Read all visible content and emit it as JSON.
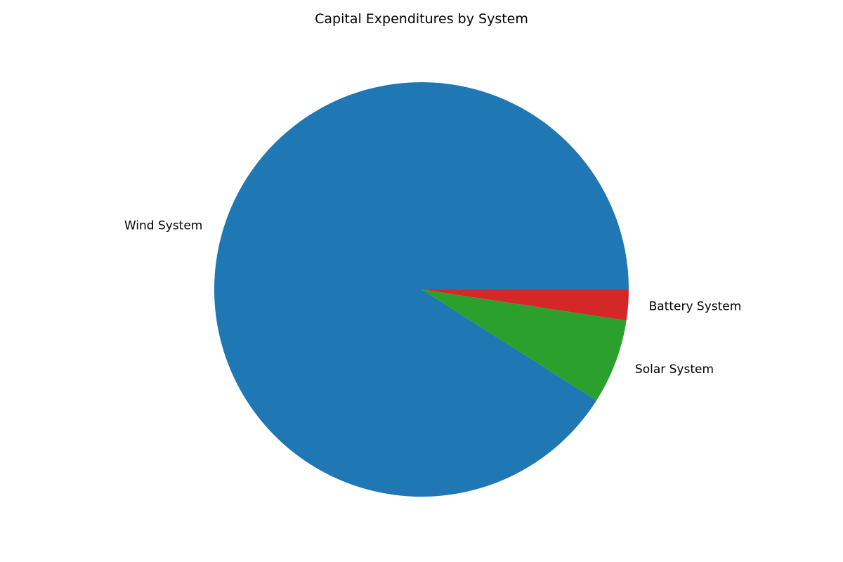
{
  "chart_data": {
    "type": "pie",
    "title": "Capital Expenditures by System",
    "categories": [
      "Battery System",
      "Solar System",
      "Wind System"
    ],
    "values": [
      2.4,
      6.6,
      91.0
    ],
    "colors": [
      "#d62728",
      "#2ca02c",
      "#1f77b4"
    ],
    "start_angle_deg": 0,
    "direction": "clockwise",
    "legend": "none"
  }
}
